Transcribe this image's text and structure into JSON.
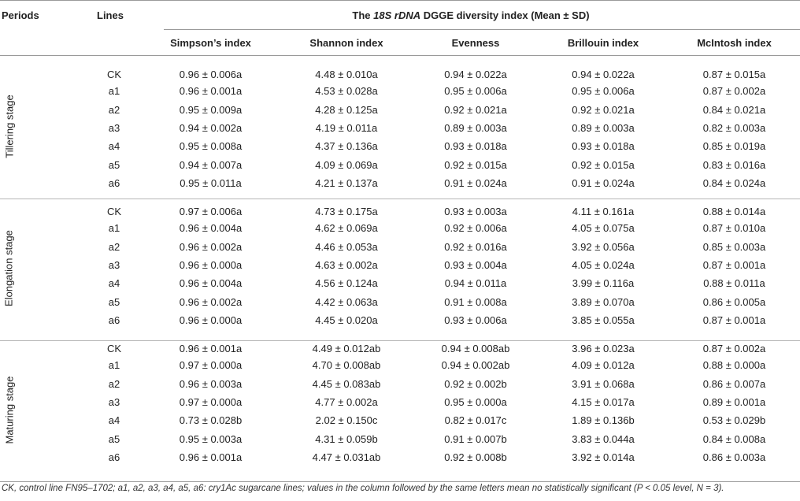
{
  "header": {
    "periods": "Periods",
    "lines": "Lines",
    "title_prefix": "The ",
    "title_italic": "18S rDNA",
    "title_suffix": " DGGE diversity index (Mean ± SD)",
    "columns": [
      "Simpson’s index",
      "Shannon index",
      "Evenness",
      "Brillouin index",
      "McIntosh index"
    ]
  },
  "groups": [
    {
      "period": "Tillering stage",
      "rows": [
        {
          "line": "CK",
          "values": [
            "0.96 ± 0.006a",
            "4.48 ± 0.010a",
            "0.94 ± 0.022a",
            "0.94 ± 0.022a",
            "0.87 ± 0.015a"
          ]
        },
        {
          "line": "a1",
          "values": [
            "0.96 ± 0.001a",
            "4.53 ± 0.028a",
            "0.95 ± 0.006a",
            "0.95 ± 0.006a",
            "0.87 ± 0.002a"
          ]
        },
        {
          "line": "a2",
          "values": [
            "0.95 ± 0.009a",
            "4.28 ± 0.125a",
            "0.92 ± 0.021a",
            "0.92 ± 0.021a",
            "0.84 ± 0.021a"
          ]
        },
        {
          "line": "a3",
          "values": [
            "0.94 ± 0.002a",
            "4.19 ± 0.011a",
            "0.89 ± 0.003a",
            "0.89 ± 0.003a",
            "0.82 ± 0.003a"
          ]
        },
        {
          "line": "a4",
          "values": [
            "0.95 ± 0.008a",
            "4.37 ± 0.136a",
            "0.93 ± 0.018a",
            "0.93 ± 0.018a",
            "0.85 ± 0.019a"
          ]
        },
        {
          "line": "a5",
          "values": [
            "0.94 ± 0.007a",
            "4.09 ± 0.069a",
            "0.92 ± 0.015a",
            "0.92 ± 0.015a",
            "0.83 ± 0.016a"
          ]
        },
        {
          "line": "a6",
          "values": [
            "0.95 ± 0.011a",
            "4.21 ± 0.137a",
            "0.91 ± 0.024a",
            "0.91 ± 0.024a",
            "0.84 ± 0.024a"
          ]
        }
      ]
    },
    {
      "period": "Elongation stage",
      "rows": [
        {
          "line": "CK",
          "values": [
            "0.97 ± 0.006a",
            "4.73 ± 0.175a",
            "0.93 ± 0.003a",
            "4.11 ± 0.161a",
            "0.88 ± 0.014a"
          ]
        },
        {
          "line": "a1",
          "values": [
            "0.96 ± 0.004a",
            "4.62 ± 0.069a",
            "0.92 ± 0.006a",
            "4.05 ± 0.075a",
            "0.87 ± 0.010a"
          ]
        },
        {
          "line": "a2",
          "values": [
            "0.96 ± 0.002a",
            "4.46 ± 0.053a",
            "0.92 ± 0.016a",
            "3.92 ± 0.056a",
            "0.85 ± 0.003a"
          ]
        },
        {
          "line": "a3",
          "values": [
            "0.96 ± 0.000a",
            "4.63 ± 0.002a",
            "0.93 ± 0.004a",
            "4.05 ± 0.024a",
            "0.87 ± 0.001a"
          ]
        },
        {
          "line": "a4",
          "values": [
            "0.96 ± 0.004a",
            "4.56 ± 0.124a",
            "0.94 ± 0.011a",
            "3.99 ± 0.116a",
            "0.88 ± 0.011a"
          ]
        },
        {
          "line": "a5",
          "values": [
            "0.96 ± 0.002a",
            "4.42 ± 0.063a",
            "0.91 ± 0.008a",
            "3.89 ± 0.070a",
            "0.86 ± 0.005a"
          ]
        },
        {
          "line": "a6",
          "values": [
            "0.96 ± 0.000a",
            "4.45 ± 0.020a",
            "0.93 ± 0.006a",
            "3.85 ± 0.055a",
            "0.87 ± 0.001a"
          ]
        }
      ]
    },
    {
      "period": "Maturing stage",
      "rows": [
        {
          "line": "CK",
          "values": [
            "0.96 ± 0.001a",
            "4.49 ± 0.012ab",
            "0.94 ± 0.008ab",
            "3.96 ± 0.023a",
            "0.87 ± 0.002a"
          ]
        },
        {
          "line": "a1",
          "values": [
            "0.97 ± 0.000a",
            "4.70 ± 0.008ab",
            "0.94 ± 0.002ab",
            "4.09 ± 0.012a",
            "0.88 ± 0.000a"
          ]
        },
        {
          "line": "a2",
          "values": [
            "0.96 ± 0.003a",
            "4.45 ± 0.083ab",
            "0.92 ± 0.002b",
            "3.91 ± 0.068a",
            "0.86 ± 0.007a"
          ]
        },
        {
          "line": "a3",
          "values": [
            "0.97 ± 0.000a",
            "4.77 ± 0.002a",
            "0.95 ± 0.000a",
            "4.15 ± 0.017a",
            "0.89 ± 0.001a"
          ]
        },
        {
          "line": "a4",
          "values": [
            "0.73 ± 0.028b",
            "2.02 ± 0.150c",
            "0.82 ± 0.017c",
            "1.89 ± 0.136b",
            "0.53 ± 0.029b"
          ]
        },
        {
          "line": "a5",
          "values": [
            "0.95 ± 0.003a",
            "4.31 ± 0.059b",
            "0.91 ± 0.007b",
            "3.83 ± 0.044a",
            "0.84 ± 0.008a"
          ]
        },
        {
          "line": "a6",
          "values": [
            "0.96 ± 0.001a",
            "4.47 ± 0.031ab",
            "0.92 ± 0.008b",
            "3.92 ± 0.014a",
            "0.86 ± 0.003a"
          ]
        }
      ]
    }
  ],
  "footnote": "CK, control line FN95–1702; a1, a2, a3, a4, a5, a6: cry1Ac sugarcane lines; values in the column followed by the same letters mean no statistically significant (P < 0.05 level, N = 3)."
}
